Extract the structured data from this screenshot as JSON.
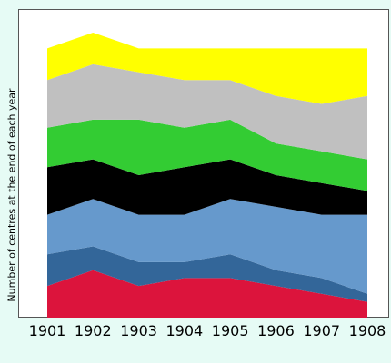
{
  "chart_data": {
    "type": "area",
    "stacked": true,
    "ylabel": "Number of centres at the end of each year",
    "xlabel": "",
    "title": "",
    "categories": [
      "1901",
      "1902",
      "1903",
      "1904",
      "1905",
      "1906",
      "1907",
      "1908"
    ],
    "y_axis_ticks_shown": false,
    "grid": false,
    "legend": "none",
    "series": [
      {
        "color": "#dc143c",
        "values": [
          10,
          15,
          10,
          12.5,
          12.5,
          10,
          7.5,
          5
        ]
      },
      {
        "color": "#336699",
        "values": [
          10,
          7.5,
          7.5,
          5,
          7.5,
          5,
          5,
          2.5
        ]
      },
      {
        "color": "#6699cc",
        "values": [
          12.5,
          15,
          15,
          15,
          17.5,
          20,
          20,
          25
        ]
      },
      {
        "color": "#000000",
        "values": [
          15,
          12.5,
          12.5,
          15,
          12.5,
          10,
          10,
          7.5
        ]
      },
      {
        "color": "#33cc33",
        "values": [
          12.5,
          12.5,
          17.5,
          12.5,
          12.5,
          10,
          10,
          10
        ]
      },
      {
        "color": "#c0c0c0",
        "values": [
          15,
          17.5,
          15,
          15,
          12.5,
          15,
          15,
          20
        ]
      },
      {
        "color": "#ffff00",
        "values": [
          10,
          10,
          7.5,
          10,
          10,
          15,
          17.5,
          15
        ]
      }
    ]
  }
}
